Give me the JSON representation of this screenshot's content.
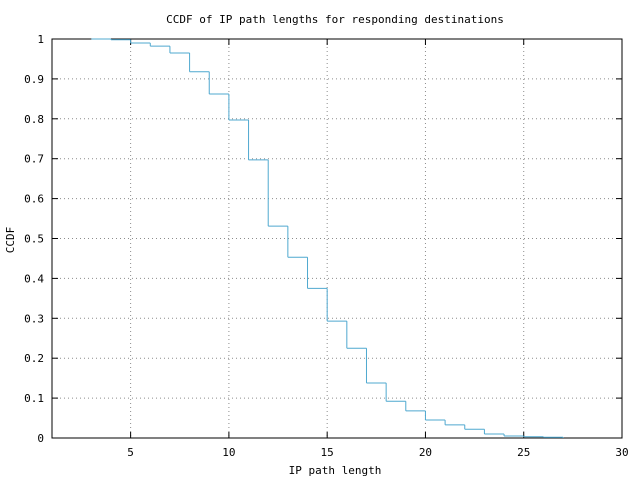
{
  "chart_data": {
    "type": "line",
    "step": true,
    "title": "CCDF of IP path lengths for responding destinations",
    "xlabel": "IP path length",
    "ylabel": "CCDF",
    "xlim": [
      1,
      30
    ],
    "ylim": [
      0,
      1
    ],
    "xticks": [
      5,
      10,
      15,
      20,
      25,
      30
    ],
    "xtick_labels": [
      "5",
      "10",
      "15",
      "20",
      "25",
      "30"
    ],
    "yticks": [
      0,
      0.1,
      0.2,
      0.3,
      0.4,
      0.5,
      0.6,
      0.7,
      0.8,
      0.9,
      1
    ],
    "ytick_labels": [
      "0",
      "0.1",
      "0.2",
      "0.3",
      "0.4",
      "0.5",
      "0.6",
      "0.7",
      "0.8",
      "0.9",
      "1"
    ],
    "grid": true,
    "grid_style": "dotted",
    "line_color": "#4fa8cf",
    "series": [
      {
        "x": [
          3,
          4,
          5,
          6,
          7,
          8,
          9,
          10,
          11,
          12,
          13,
          14,
          15,
          16,
          17,
          18,
          19,
          20,
          21,
          22,
          23,
          24,
          25,
          26,
          27
        ],
        "values": [
          1.0,
          0.998,
          0.99,
          0.982,
          0.965,
          0.918,
          0.862,
          0.797,
          0.697,
          0.531,
          0.453,
          0.375,
          0.293,
          0.225,
          0.138,
          0.092,
          0.068,
          0.045,
          0.033,
          0.022,
          0.01,
          0.005,
          0.003,
          0.002,
          0.0
        ]
      }
    ]
  }
}
